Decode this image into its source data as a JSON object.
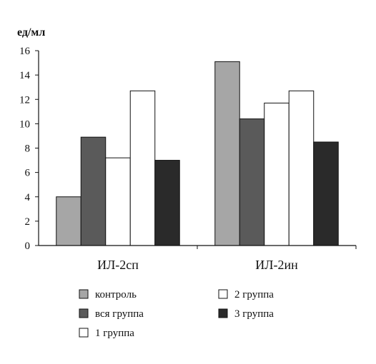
{
  "chart_data": {
    "type": "bar",
    "title": "",
    "xlabel": "",
    "ylabel": "ед/мл",
    "ylim": [
      0,
      16
    ],
    "yticks": [
      0,
      2,
      4,
      6,
      8,
      10,
      12,
      14,
      16
    ],
    "grid": false,
    "legend_position": "bottom",
    "categories": [
      "ИЛ-2сп",
      "ИЛ-2ин"
    ],
    "series": [
      {
        "name": "контроль",
        "values": [
          4.0,
          15.1
        ],
        "color": "#a6a6a6"
      },
      {
        "name": "вся группа",
        "values": [
          8.9,
          10.4
        ],
        "color": "#5a5a5a"
      },
      {
        "name": "1 группа",
        "values": [
          7.2,
          11.7
        ],
        "color": "#ffffff"
      },
      {
        "name": "2 группа",
        "values": [
          12.7,
          12.7
        ],
        "color": "#ffffff"
      },
      {
        "name": "3 группа",
        "values": [
          7.0,
          8.5
        ],
        "color": "#2a2a2a"
      }
    ]
  }
}
